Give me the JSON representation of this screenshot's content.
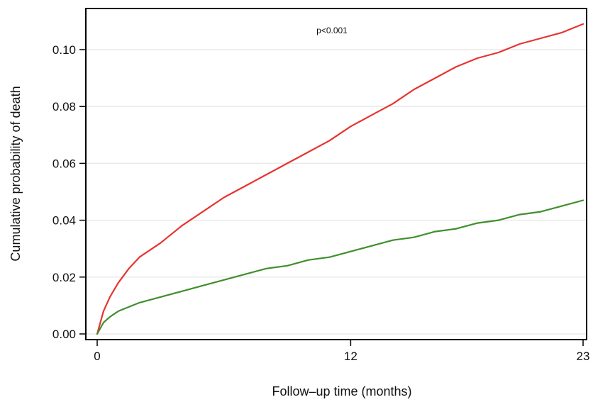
{
  "chart_data": {
    "type": "line",
    "title": "",
    "xlabel": "Follow–up time (months)",
    "ylabel": "Cumulative probability of death",
    "annotation": "p<0.001",
    "footer_text": "",
    "x_ticks": [
      "0",
      "12",
      "23"
    ],
    "x_tick_values": [
      0,
      12,
      23
    ],
    "y_ticks": [
      "0.00",
      "0.02",
      "0.04",
      "0.06",
      "0.08",
      "0.10"
    ],
    "y_tick_values": [
      0.0,
      0.02,
      0.04,
      0.06,
      0.08,
      0.1
    ],
    "xlim": [
      0,
      23
    ],
    "ylim": [
      0,
      0.11
    ],
    "grid": true,
    "legend": "none",
    "series": [
      {
        "color": "#e8332f",
        "x": [
          0,
          0.3,
          0.6,
          1,
          1.5,
          2,
          3,
          4,
          5,
          6,
          7,
          8,
          9,
          10,
          11,
          12,
          13,
          14,
          15,
          16,
          17,
          18,
          19,
          20,
          21,
          22,
          23
        ],
        "y": [
          0.0,
          0.008,
          0.013,
          0.018,
          0.023,
          0.027,
          0.032,
          0.038,
          0.043,
          0.048,
          0.052,
          0.056,
          0.06,
          0.064,
          0.068,
          0.073,
          0.077,
          0.081,
          0.086,
          0.09,
          0.094,
          0.097,
          0.099,
          0.102,
          0.104,
          0.106,
          0.109
        ]
      },
      {
        "color": "#3f8f2f",
        "x": [
          0,
          0.3,
          0.6,
          1,
          2,
          3,
          4,
          5,
          6,
          7,
          8,
          9,
          10,
          11,
          12,
          13,
          14,
          15,
          16,
          17,
          18,
          19,
          20,
          21,
          22,
          23
        ],
        "y": [
          0.0,
          0.004,
          0.006,
          0.008,
          0.011,
          0.013,
          0.015,
          0.017,
          0.019,
          0.021,
          0.023,
          0.024,
          0.026,
          0.027,
          0.029,
          0.031,
          0.033,
          0.034,
          0.036,
          0.037,
          0.039,
          0.04,
          0.042,
          0.043,
          0.045,
          0.047
        ]
      }
    ]
  }
}
